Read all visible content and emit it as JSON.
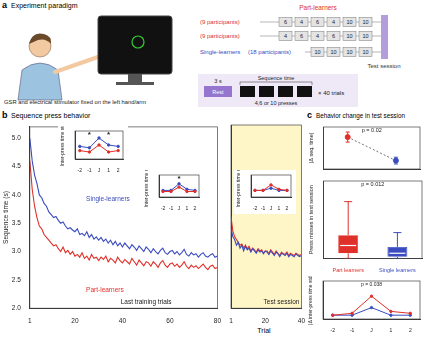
{
  "panels": [
    {
      "label": "a",
      "title": "Experiment paradigm"
    },
    {
      "label": "b",
      "title": "Sequence press behavior"
    },
    {
      "label": "c",
      "title": "Behavior change in test session"
    }
  ],
  "paradigm": {
    "device_note": "GSR and electrical stimulator fixed on the left hand/arm",
    "groups": [
      {
        "name": "Part-learners",
        "color": "#e0302a",
        "rows": [
          {
            "participants": "(9 participants)",
            "sequence": [
              "6",
              "4",
              "6",
              "4",
              "10",
              "10"
            ]
          },
          {
            "participants": "(9 participants)",
            "sequence": [
              "4",
              "6",
              "4",
              "6",
              "10",
              "10"
            ]
          }
        ]
      },
      {
        "name": "Single-learners",
        "participants": "(18 participants)",
        "color": "#3b4cc0",
        "rows": [
          {
            "sequence": [
              "10",
              "10",
              "10",
              "10"
            ]
          }
        ]
      }
    ],
    "test_label": "Test session",
    "trial": {
      "rest_duration": "3 s",
      "rest": "Rest",
      "sequence_time": "Sequence time",
      "presses": "4,6 or 10 presses",
      "repeats": "× 40 trials"
    }
  },
  "chart_data": [
    {
      "type": "line",
      "y_label": "Sequence time (s)",
      "grid": false,
      "annotations": [
        {
          "text": "Last training trials"
        }
      ],
      "x": [
        1,
        2,
        3,
        4,
        5,
        6,
        7,
        8,
        9,
        10,
        11,
        12,
        13,
        14,
        15,
        16,
        17,
        18,
        19,
        20,
        21,
        22,
        23,
        24,
        25,
        26,
        27,
        28,
        29,
        30,
        31,
        32,
        33,
        34,
        35,
        36,
        37,
        38,
        39,
        40,
        41,
        42,
        43,
        44,
        45,
        46,
        47,
        48,
        49,
        50,
        51,
        52,
        53,
        54,
        55,
        56,
        57,
        58,
        59,
        60,
        61,
        62,
        63,
        64,
        65,
        66,
        67,
        68,
        69,
        70,
        71,
        72,
        73,
        74,
        75,
        76,
        77,
        78,
        79,
        80
      ],
      "xlim": [
        1,
        80
      ],
      "xticks": [
        1,
        20,
        40,
        60,
        80
      ],
      "ylim": [
        2,
        5.2
      ],
      "yticks": [
        {
          "value": 2,
          "label": "2.0"
        },
        {
          "value": 2.5,
          "label": "2.5"
        },
        {
          "value": 3,
          "label": "3.0"
        },
        {
          "value": 3.5,
          "label": "3.5"
        },
        {
          "value": 4,
          "label": "4.0"
        },
        {
          "value": 4.5,
          "label": "4.5"
        },
        {
          "value": 5,
          "label": "5.0"
        }
      ],
      "series": [
        {
          "name": "Single-learners",
          "color": "#3b4cc0",
          "values": [
            5.0,
            4.6,
            4.35,
            4.2,
            4.0,
            3.95,
            3.85,
            3.8,
            3.7,
            3.65,
            3.6,
            3.62,
            3.55,
            3.5,
            3.52,
            3.45,
            3.4,
            3.42,
            3.38,
            3.35,
            3.4,
            3.3,
            3.32,
            3.28,
            3.35,
            3.25,
            3.3,
            3.22,
            3.26,
            3.2,
            3.25,
            3.18,
            3.22,
            3.15,
            3.2,
            3.12,
            3.18,
            3.1,
            3.15,
            3.08,
            3.15,
            3.1,
            3.05,
            3.12,
            3.08,
            3.02,
            3.1,
            3.05,
            3.0,
            3.08,
            3.04,
            2.98,
            3.05,
            3.0,
            2.96,
            3.02,
            3.06,
            2.98,
            2.95,
            3.0,
            3.02,
            2.96,
            3.0,
            2.94,
            2.98,
            3.04,
            2.95,
            2.92,
            2.98,
            2.94,
            2.96,
            2.9,
            2.95,
            2.98,
            2.92,
            2.9,
            2.94,
            2.96,
            2.9,
            2.92
          ]
        },
        {
          "name": "Part-learners",
          "color": "#e0302a",
          "values": [
            4.6,
            4.1,
            3.8,
            3.6,
            3.45,
            3.4,
            3.3,
            3.25,
            3.2,
            3.15,
            3.1,
            3.12,
            3.05,
            3.0,
            3.08,
            2.98,
            3.02,
            2.95,
            3.0,
            2.92,
            2.95,
            2.9,
            2.98,
            2.88,
            2.92,
            2.85,
            2.95,
            2.88,
            2.9,
            2.84,
            2.9,
            2.86,
            2.92,
            2.82,
            2.88,
            2.85,
            2.8,
            2.9,
            2.84,
            2.8,
            2.86,
            2.82,
            2.78,
            2.88,
            2.82,
            2.76,
            2.85,
            2.8,
            2.75,
            2.82,
            2.8,
            2.74,
            2.82,
            2.78,
            2.72,
            2.8,
            2.84,
            2.76,
            2.72,
            2.78,
            2.8,
            2.74,
            2.78,
            2.72,
            2.76,
            2.82,
            2.74,
            2.7,
            2.76,
            2.72,
            2.75,
            2.7,
            2.74,
            2.78,
            2.72,
            2.68,
            2.74,
            2.76,
            2.7,
            2.72
          ]
        }
      ]
    },
    {
      "type": "line",
      "title": "Test session",
      "x_label": "Trial",
      "grid": false,
      "tick_labels": "x",
      "x": [
        1,
        2,
        3,
        4,
        5,
        6,
        7,
        8,
        9,
        10,
        11,
        12,
        13,
        14,
        15,
        16,
        17,
        18,
        19,
        20,
        21,
        22,
        23,
        24,
        25,
        26,
        27,
        28,
        29,
        30,
        31,
        32,
        33,
        34,
        35,
        36,
        37,
        38,
        39,
        40
      ],
      "xlim": [
        1,
        40
      ],
      "xticks": [
        1,
        20,
        40
      ],
      "ylim": [
        2,
        5.2
      ],
      "series": [
        {
          "color": "#3b4cc0",
          "values": [
            3.4,
            3.25,
            3.2,
            3.1,
            3.15,
            3.05,
            3.1,
            3.0,
            3.08,
            3.02,
            3.05,
            2.98,
            3.04,
            3.0,
            2.96,
            3.02,
            2.98,
            3.0,
            2.95,
            3.0,
            2.98,
            2.94,
            3.0,
            2.96,
            2.92,
            2.98,
            2.95,
            2.9,
            2.96,
            2.94,
            2.92,
            2.96,
            2.9,
            2.94,
            2.92,
            2.9,
            2.95,
            2.92,
            2.9,
            2.92
          ]
        },
        {
          "color": "#e0302a",
          "values": [
            3.6,
            3.35,
            3.25,
            3.2,
            3.15,
            3.1,
            3.12,
            3.05,
            3.1,
            3.04,
            3.08,
            3.0,
            3.05,
            3.02,
            2.98,
            3.04,
            3.0,
            3.02,
            2.96,
            3.0,
            3.0,
            2.95,
            3.02,
            2.98,
            2.94,
            3.0,
            2.96,
            2.92,
            2.98,
            2.95,
            2.94,
            2.98,
            2.92,
            2.96,
            2.94,
            2.92,
            2.96,
            2.94,
            2.92,
            2.94
          ]
        }
      ]
    },
    {
      "type": "line",
      "y_label": "Inter-press time std",
      "grid": false,
      "tick_labels": "x",
      "categories": [
        "-2",
        "-1",
        "J",
        "1",
        "2"
      ],
      "ylim": [
        0,
        0.4
      ],
      "annotations": [
        {
          "text": "*",
          "x": "-1"
        },
        {
          "text": "*",
          "x": "1"
        }
      ],
      "series": [
        {
          "color": "#e0302a",
          "values": [
            0.12,
            0.1,
            0.2,
            0.1,
            0.12
          ]
        },
        {
          "color": "#3b4cc0",
          "values": [
            0.18,
            0.16,
            0.3,
            0.2,
            0.18
          ]
        }
      ]
    },
    {
      "type": "line",
      "y_label": "Inter-press time std",
      "grid": false,
      "tick_labels": "x",
      "categories": [
        "-2",
        "-1",
        "J",
        "1",
        "2"
      ],
      "ylim": [
        0,
        0.4
      ],
      "annotations": [
        {
          "text": "*",
          "x": "J"
        }
      ],
      "series": [
        {
          "color": "#e0302a",
          "values": [
            0.1,
            0.1,
            0.18,
            0.1,
            0.1
          ]
        },
        {
          "color": "#3b4cc0",
          "values": [
            0.12,
            0.12,
            0.24,
            0.14,
            0.12
          ]
        }
      ]
    },
    {
      "type": "line",
      "y_label": "Inter-press time std",
      "grid": false,
      "tick_labels": "x",
      "categories": [
        "-2",
        "-1",
        "J",
        "1",
        "2"
      ],
      "ylim": [
        0,
        0.4
      ],
      "series": [
        {
          "color": "#e0302a",
          "values": [
            0.12,
            0.12,
            0.22,
            0.14,
            0.12
          ]
        },
        {
          "color": "#3b4cc0",
          "values": [
            0.12,
            0.12,
            0.16,
            0.12,
            0.12
          ]
        }
      ]
    },
    {
      "type": "errorbar",
      "y_label": "|Δ seq. time|",
      "grid": false,
      "tick_labels": false,
      "line_style": "dashed",
      "categories": [
        null,
        null
      ],
      "values": [
        0.38,
        0.1
      ],
      "errors": [
        0.06,
        0.04
      ],
      "colors": [
        "#e0302a",
        "#3b4cc0"
      ],
      "ylim": [
        0,
        0.5
      ],
      "annotations": [
        {
          "text": "p = 0.02"
        }
      ]
    },
    {
      "type": "box",
      "y_label": "Press misses in test session",
      "grid": false,
      "tick_labels": "x",
      "categories": [
        "Part learners",
        "Single learners"
      ],
      "colors": [
        "#e0302a",
        "#3b4cc0"
      ],
      "boxes": [
        {
          "min": 0,
          "q1": 1,
          "median": 2.5,
          "q3": 4.5,
          "max": 11
        },
        {
          "min": 0,
          "q1": 0.3,
          "median": 1,
          "q3": 2.2,
          "max": 5
        }
      ],
      "ylim": [
        0,
        15
      ],
      "annotations": [
        {
          "text": "p = 0.012"
        }
      ]
    },
    {
      "type": "line",
      "y_label": "|Δ inter-press time std|",
      "grid": false,
      "tick_labels": "x",
      "categories": [
        "-2",
        "-1",
        "J",
        "1",
        "2"
      ],
      "ylim": [
        0,
        0.2
      ],
      "annotations": [
        {
          "text": "p = 0.038"
        }
      ],
      "series": [
        {
          "color": "#e0302a",
          "values": [
            0.02,
            0.03,
            0.12,
            0.04,
            0.03
          ]
        },
        {
          "color": "#3b4cc0",
          "values": [
            0.02,
            0.02,
            0.06,
            0.02,
            0.02
          ]
        }
      ]
    }
  ]
}
